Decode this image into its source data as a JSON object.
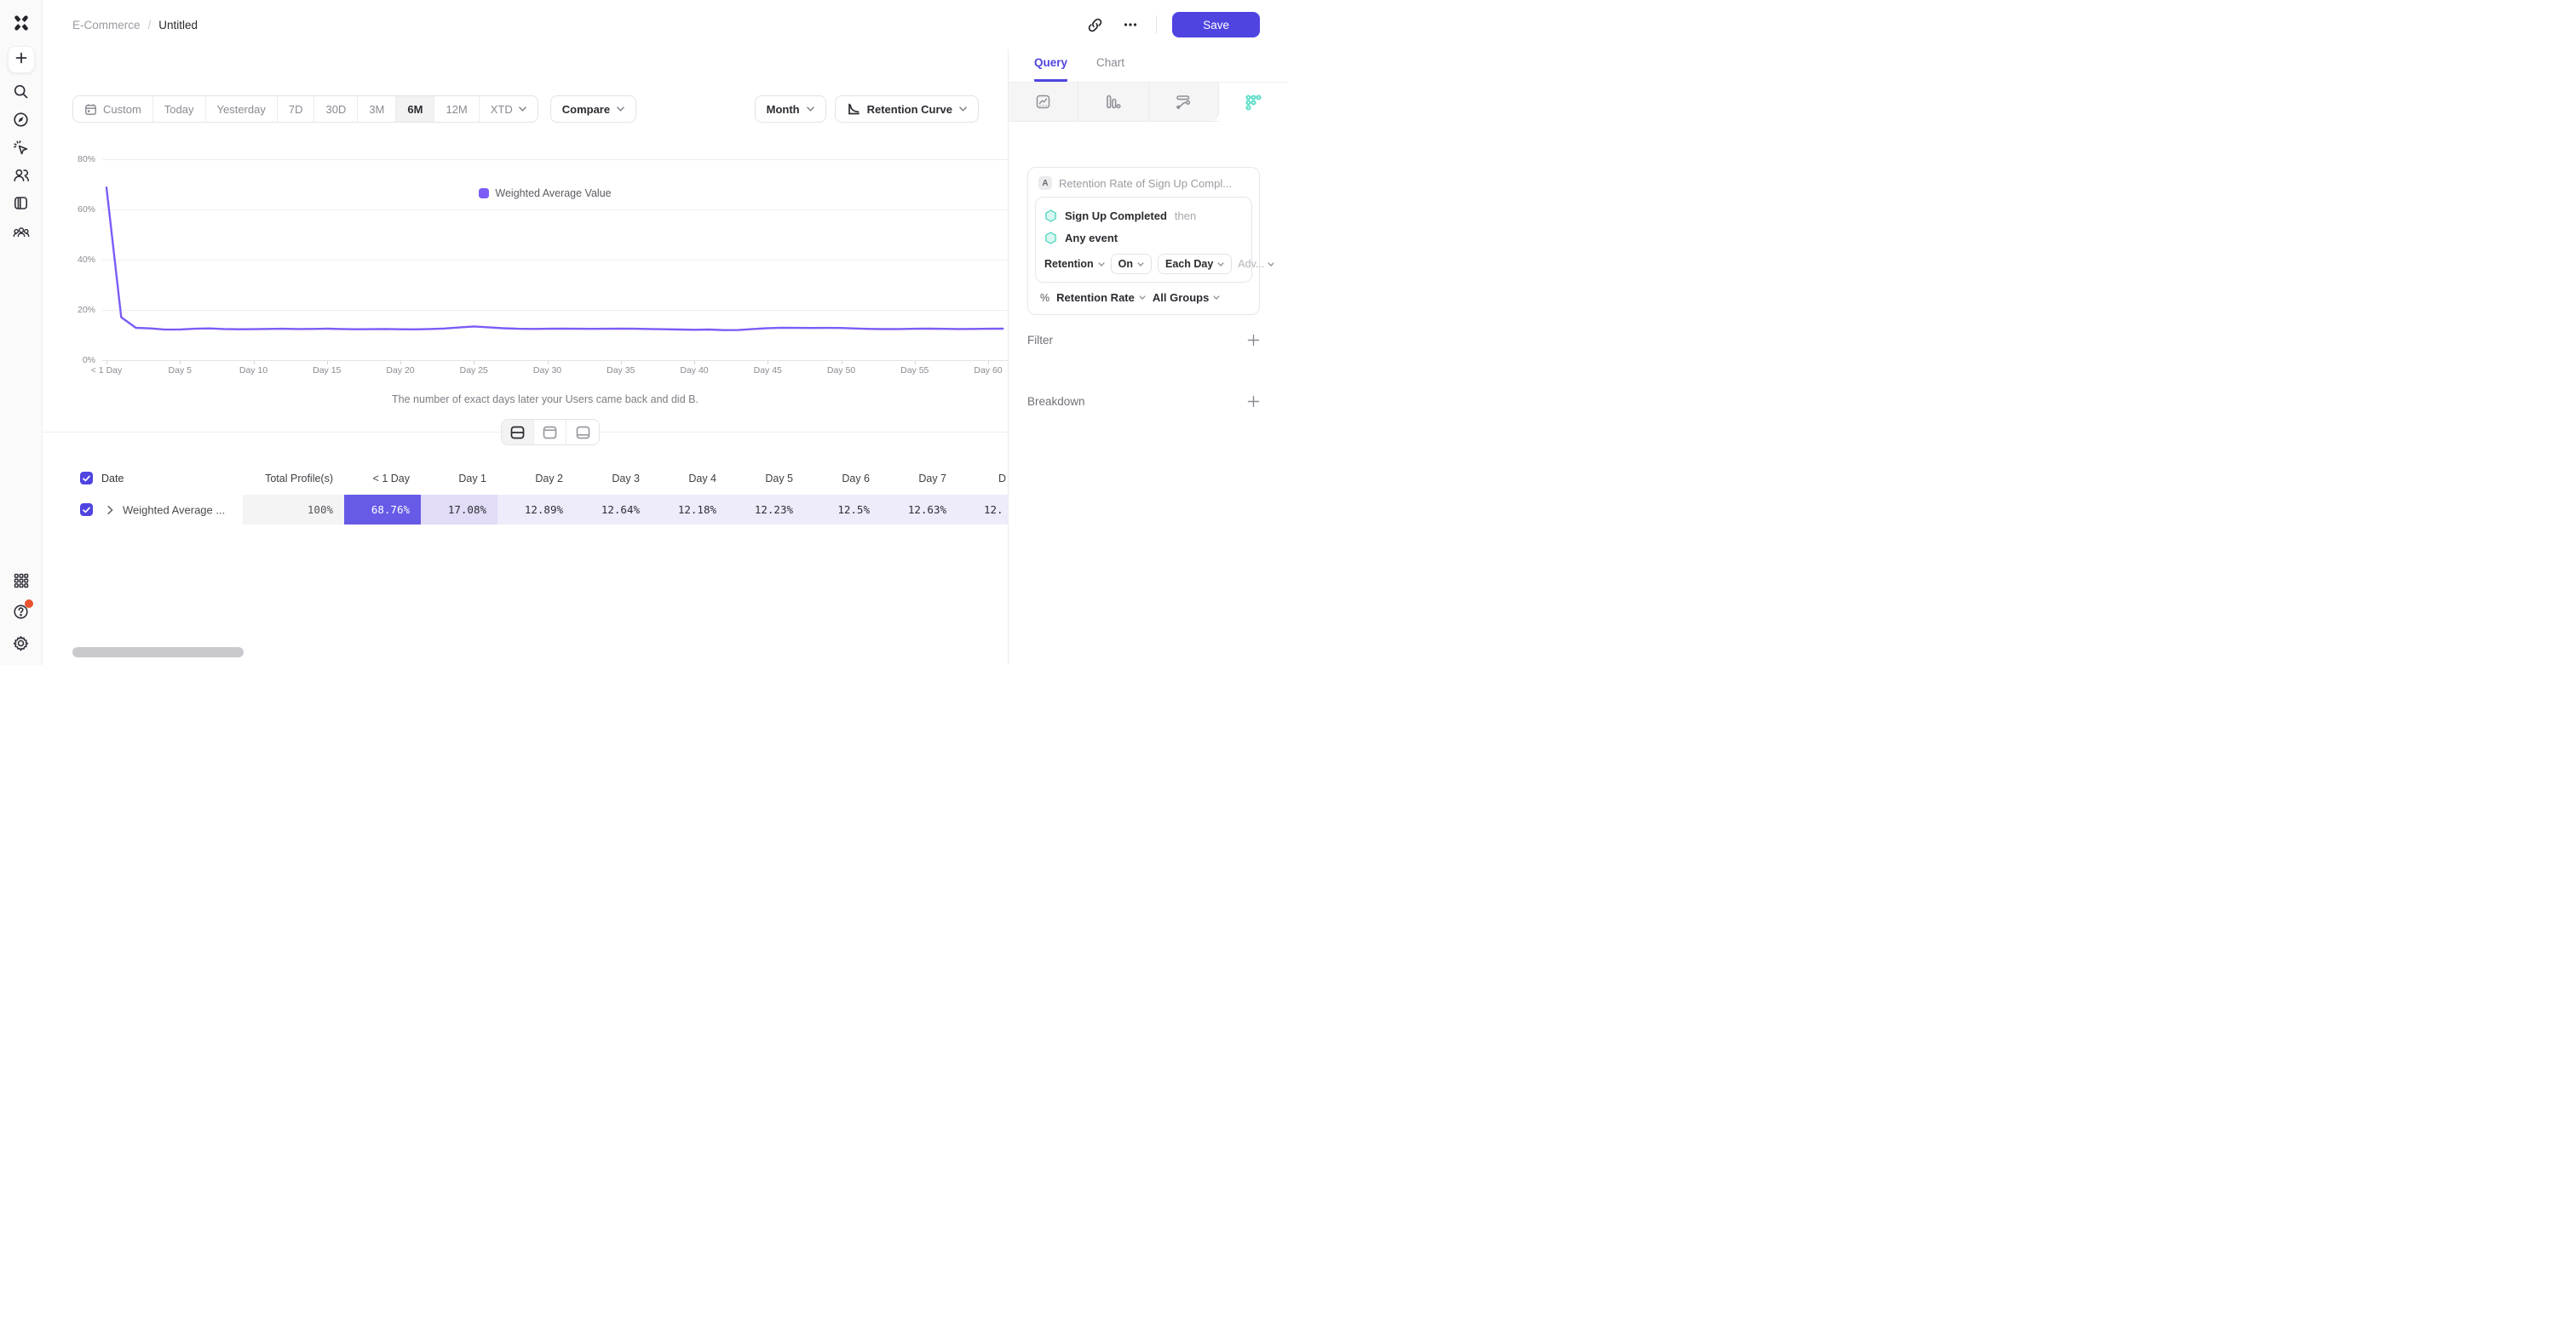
{
  "header": {
    "breadcrumb_project": "E-Commerce",
    "breadcrumb_sep": "/",
    "breadcrumb_title": "Untitled",
    "save_label": "Save"
  },
  "toolbar": {
    "date_ranges": [
      "Custom",
      "Today",
      "Yesterday",
      "7D",
      "30D",
      "3M",
      "6M",
      "12M",
      "XTD"
    ],
    "active_range": "6M",
    "compare_label": "Compare",
    "granularity_label": "Month",
    "chart_type_label": "Retention Curve"
  },
  "legend": {
    "label": "Weighted Average Value",
    "color": "#7B5CF6"
  },
  "chart_data": {
    "type": "line",
    "title": "",
    "xlabel": "",
    "ylabel": "",
    "x_caption": "The number of exact days later your Users came back and did B.",
    "x_unit": "day",
    "x_ticks": [
      "< 1 Day",
      "Day 5",
      "Day 10",
      "Day 15",
      "Day 20",
      "Day 25",
      "Day 30",
      "Day 35",
      "Day 40",
      "Day 45",
      "Day 50",
      "Day 55",
      "Day 60"
    ],
    "yticks": [
      "0%",
      "20%",
      "40%",
      "60%",
      "80%"
    ],
    "ylim": [
      0,
      80
    ],
    "grid": true,
    "legend_position": "top-center",
    "line_color": "#7B5CF6",
    "series": [
      {
        "name": "Weighted Average Value",
        "values": [
          68.76,
          17.08,
          12.89,
          12.64,
          12.18,
          12.23,
          12.5,
          12.63,
          12.42,
          12.3,
          12.35,
          12.45,
          12.52,
          12.4,
          12.45,
          12.55,
          12.42,
          12.3,
          12.35,
          12.42,
          12.3,
          12.26,
          12.4,
          12.6,
          13.0,
          13.42,
          13.1,
          12.7,
          12.52,
          12.45,
          12.5,
          12.56,
          12.5,
          12.46,
          12.5,
          12.55,
          12.5,
          12.4,
          12.3,
          12.2,
          12.1,
          12.2,
          11.95,
          12.0,
          12.4,
          12.75,
          12.9,
          12.85,
          12.8,
          12.85,
          12.8,
          12.6,
          12.45,
          12.38,
          12.42,
          12.5,
          12.55,
          12.46,
          12.4,
          12.45,
          12.5,
          12.55
        ]
      }
    ]
  },
  "layout_toggle": {
    "options": [
      "split-view",
      "chart-only",
      "table-only"
    ],
    "active": "split-view"
  },
  "table": {
    "headers": [
      "Date",
      "Total Profile(s)",
      "< 1 Day",
      "Day 1",
      "Day 2",
      "Day 3",
      "Day 4",
      "Day 5",
      "Day 6",
      "Day 7",
      "D"
    ],
    "row": {
      "label": "Weighted Average ...",
      "values": [
        "100%",
        "68.76%",
        "17.08%",
        "12.89%",
        "12.64%",
        "12.18%",
        "12.23%",
        "12.5%",
        "12.63%",
        "12."
      ],
      "cell_bgs": [
        "#F4F4F4",
        "#675AE7",
        "#E2DCF8",
        "#EEEBFA",
        "#EEEBFA",
        "#EEEBFA",
        "#EEEBFA",
        "#EEEBFA",
        "#EEEBFA",
        "#EEEBFA"
      ],
      "cell_text": [
        "#55555C",
        "#FFFFFF",
        "#2F2F35",
        "#2F2F35",
        "#2F2F35",
        "#2F2F35",
        "#2F2F35",
        "#2F2F35",
        "#2F2F35",
        "#2F2F35"
      ]
    }
  },
  "panel": {
    "tabs": [
      {
        "label": "Query",
        "active": true
      },
      {
        "label": "Chart",
        "active": false
      }
    ],
    "report_types": [
      "insights",
      "funnels",
      "flows",
      "retention"
    ],
    "active_report": "retention",
    "query": {
      "badge": "A",
      "title": "Retention Rate of Sign Up Compl...",
      "event_a": "Sign Up Completed",
      "then_label": "then",
      "event_b": "Any event",
      "retention_label": "Retention",
      "on_label": "On",
      "each_label": "Each Day",
      "adv_label": "Adv...",
      "percent_symbol": "%",
      "measure_label": "Retention Rate",
      "groups_label": "All Groups"
    },
    "sections": [
      {
        "label": "Filter"
      },
      {
        "label": "Breakdown"
      }
    ]
  },
  "colors": {
    "accent": "#4F44E0",
    "teal": "#5EDFC9",
    "highlight_cell": "#675AE7",
    "help_badge": "#E8532D"
  },
  "icons": {
    "sidebar_top": [
      "mixpanel-logo",
      "plus-icon",
      "search-icon",
      "compass-icon",
      "cursor-click-icon",
      "users-icon",
      "board-icon",
      "cohorts-icon"
    ],
    "sidebar_bottom": [
      "apps-grid-icon",
      "help-icon",
      "gear-icon"
    ],
    "topbar": [
      "link-icon",
      "ellipsis-icon"
    ],
    "misc": [
      "calendar-icon",
      "chevron-down-icon",
      "retention-curve-icon",
      "hexagon-icon",
      "check-icon",
      "chevron-right-icon",
      "plus-icon"
    ]
  }
}
